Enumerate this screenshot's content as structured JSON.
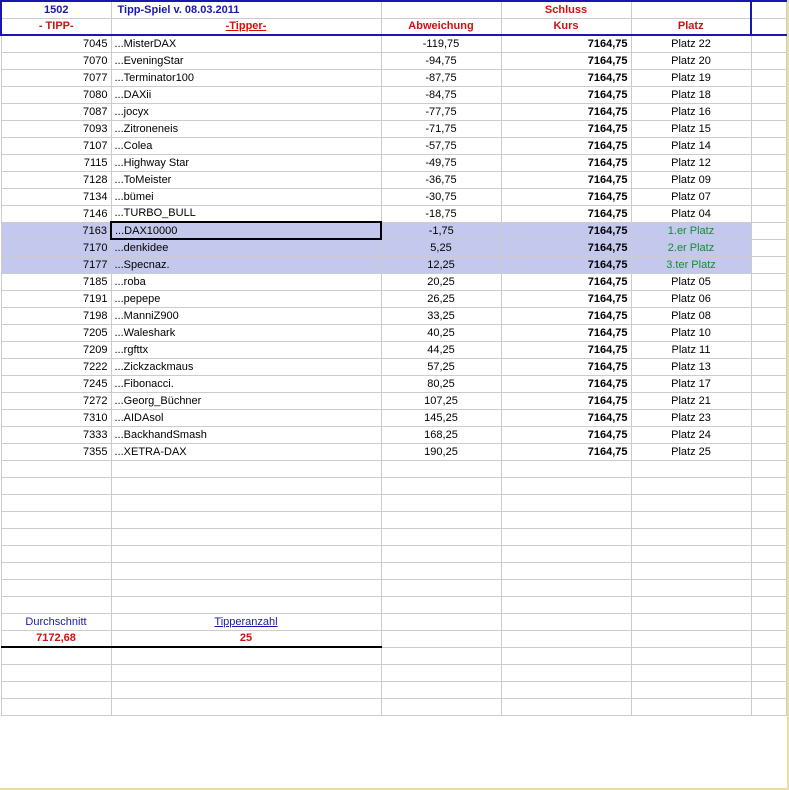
{
  "header": {
    "number": "1502",
    "title": "Tipp-Spiel v. 08.03.2011",
    "schluss": "Schluss",
    "tipp": "- TIPP-",
    "tipper": "-Tipper-",
    "abweichung": "Abweichung",
    "kurs": "Kurs",
    "platz": "Platz"
  },
  "kurs_value": "7164,75",
  "rows": [
    {
      "tipp": "7045",
      "tipper": "...MisterDAX",
      "abw": "-119,75",
      "platz": "Platz 22",
      "hl": false
    },
    {
      "tipp": "7070",
      "tipper": "...EveningStar",
      "abw": "-94,75",
      "platz": "Platz 20",
      "hl": false
    },
    {
      "tipp": "7077",
      "tipper": "...Terminator100",
      "abw": "-87,75",
      "platz": "Platz 19",
      "hl": false
    },
    {
      "tipp": "7080",
      "tipper": "...DAXii",
      "abw": "-84,75",
      "platz": "Platz 18",
      "hl": false
    },
    {
      "tipp": "7087",
      "tipper": "...jocyx",
      "abw": "-77,75",
      "platz": "Platz 16",
      "hl": false
    },
    {
      "tipp": "7093",
      "tipper": "...Zitroneneis",
      "abw": "-71,75",
      "platz": "Platz 15",
      "hl": false
    },
    {
      "tipp": "7107",
      "tipper": "...Colea",
      "abw": "-57,75",
      "platz": "Platz 14",
      "hl": false
    },
    {
      "tipp": "7115",
      "tipper": "...Highway Star",
      "abw": "-49,75",
      "platz": "Platz 12",
      "hl": false
    },
    {
      "tipp": "7128",
      "tipper": "...ToMeister",
      "abw": "-36,75",
      "platz": "Platz 09",
      "hl": false
    },
    {
      "tipp": "7134",
      "tipper": "...bümei",
      "abw": "-30,75",
      "platz": "Platz 07",
      "hl": false
    },
    {
      "tipp": "7146",
      "tipper": "...TURBO_BULL",
      "abw": "-18,75",
      "platz": "Platz 04",
      "hl": false
    },
    {
      "tipp": "7163",
      "tipper": "...DAX10000",
      "abw": "-1,75",
      "platz": "1.er Platz",
      "hl": true,
      "win": true,
      "sel": true
    },
    {
      "tipp": "7170",
      "tipper": "...denkidee",
      "abw": "5,25",
      "platz": "2.er Platz",
      "hl": true,
      "win": true
    },
    {
      "tipp": "7177",
      "tipper": "...Specnaz.",
      "abw": "12,25",
      "platz": "3.ter Platz",
      "hl": true,
      "win": true
    },
    {
      "tipp": "7185",
      "tipper": "...roba",
      "abw": "20,25",
      "platz": "Platz 05",
      "hl": false
    },
    {
      "tipp": "7191",
      "tipper": "...pepepe",
      "abw": "26,25",
      "platz": "Platz 06",
      "hl": false
    },
    {
      "tipp": "7198",
      "tipper": "...ManniZ900",
      "abw": "33,25",
      "platz": "Platz 08",
      "hl": false
    },
    {
      "tipp": "7205",
      "tipper": "...Waleshark",
      "abw": "40,25",
      "platz": "Platz 10",
      "hl": false
    },
    {
      "tipp": "7209",
      "tipper": "...rgfttx",
      "abw": "44,25",
      "platz": "Platz 11",
      "hl": false
    },
    {
      "tipp": "7222",
      "tipper": "...Zickzackmaus",
      "abw": "57,25",
      "platz": "Platz 13",
      "hl": false
    },
    {
      "tipp": "7245",
      "tipper": "...Fibonacci.",
      "abw": "80,25",
      "platz": "Platz 17",
      "hl": false
    },
    {
      "tipp": "7272",
      "tipper": "...Georg_Büchner",
      "abw": "107,25",
      "platz": "Platz 21",
      "hl": false
    },
    {
      "tipp": "7310",
      "tipper": "...AIDAsol",
      "abw": "145,25",
      "platz": "Platz 23",
      "hl": false
    },
    {
      "tipp": "7333",
      "tipper": "...BackhandSmash",
      "abw": "168,25",
      "platz": "Platz 24",
      "hl": false
    },
    {
      "tipp": "7355",
      "tipper": "...XETRA-DAX",
      "abw": "190,25",
      "platz": "Platz 25",
      "hl": false
    }
  ],
  "empty_rows_middle": 9,
  "summary": {
    "label1": "Durchschnitt",
    "label2": "Tipperanzahl",
    "val1": "7172,68",
    "val2": "25"
  },
  "empty_rows_bottom": 4,
  "colors": {
    "blue": "#1818b0",
    "red": "#d01010",
    "green": "#109030",
    "highlight": "#c4c8ec",
    "grid": "#cccccc",
    "edge": "#e8e0a0"
  }
}
